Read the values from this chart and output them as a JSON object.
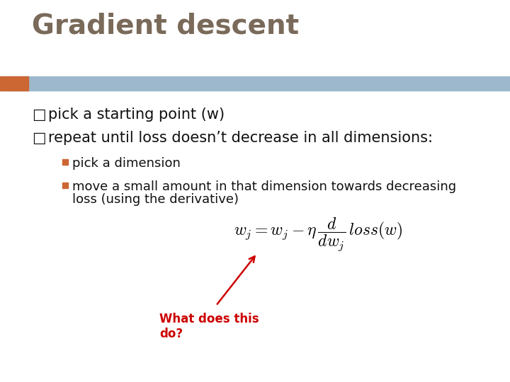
{
  "title": "Gradient descent",
  "title_color": "#7a6a5a",
  "title_fontsize": 28,
  "bg_color": "#ffffff",
  "header_bar_color": "#9db8cc",
  "header_bar_orange_color": "#cc6633",
  "bullet1": "pick a starting point (w)",
  "bullet2": "repeat until loss doesn’t decrease in all dimensions:",
  "sub_bullet1": "pick a dimension",
  "sub_bullet2_line1": "move a small amount in that dimension towards decreasing",
  "sub_bullet2_line2": "loss (using the derivative)",
  "bullet_fontsize": 15,
  "sub_bullet_fontsize": 13,
  "bullet_color": "#111111",
  "square_bullet_color": "#cc6633",
  "arrow_color": "#cc0000",
  "annotation_text": "What does this\ndo?",
  "annotation_color": "#cc0000",
  "annotation_fontsize": 12
}
